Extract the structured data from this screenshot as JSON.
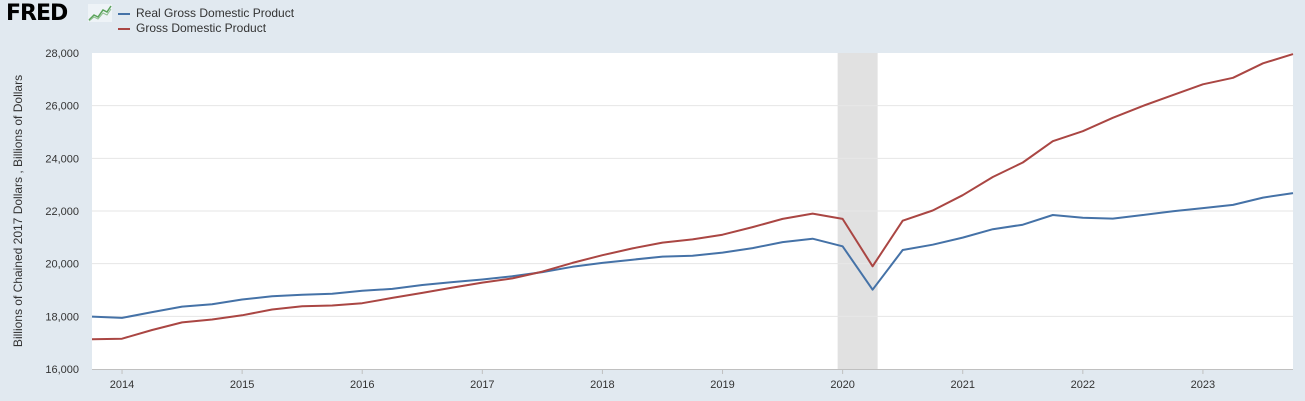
{
  "brand": {
    "logo_text": "FRED",
    "logo_icon": "fred-chart-icon"
  },
  "colors": {
    "background": "#e1e9f0",
    "plot": "#ffffff",
    "recession": "#e1e1e1"
  },
  "chart_data": {
    "type": "line",
    "title": "",
    "ylabel": "Billions of Chained 2017 Dollars , Billions of Dollars",
    "xlabel": "",
    "ylim": [
      16000,
      28000
    ],
    "yticks": [
      16000,
      18000,
      20000,
      22000,
      24000,
      26000,
      28000
    ],
    "ytick_labels": [
      "16,000",
      "18,000",
      "20,000",
      "22,000",
      "24,000",
      "26,000",
      "28,000"
    ],
    "xlim": [
      2013.75,
      2023.75
    ],
    "xticks": [
      2014,
      2015,
      2016,
      2017,
      2018,
      2019,
      2020,
      2021,
      2022,
      2023
    ],
    "xtick_labels": [
      "2014",
      "2015",
      "2016",
      "2017",
      "2018",
      "2019",
      "2020",
      "2021",
      "2022",
      "2023"
    ],
    "recession": [
      2020.0,
      2020.25
    ],
    "grid": true,
    "legend_position": "top-left",
    "x": [
      2013.75,
      2014.0,
      2014.25,
      2014.5,
      2014.75,
      2015.0,
      2015.25,
      2015.5,
      2015.75,
      2016.0,
      2016.25,
      2016.5,
      2016.75,
      2017.0,
      2017.25,
      2017.5,
      2017.75,
      2018.0,
      2018.25,
      2018.5,
      2018.75,
      2019.0,
      2019.25,
      2019.5,
      2019.75,
      2020.0,
      2020.25,
      2020.5,
      2020.75,
      2021.0,
      2021.25,
      2021.5,
      2021.75,
      2022.0,
      2022.25,
      2022.5,
      2022.75,
      2023.0,
      2023.25,
      2023.5,
      2023.75
    ],
    "series": [
      {
        "name": "Real Gross Domestic Product",
        "color": "#4572a7",
        "values": [
          17990,
          17940,
          18160,
          18370,
          18460,
          18640,
          18760,
          18820,
          18860,
          18970,
          19040,
          19190,
          19300,
          19400,
          19520,
          19680,
          19880,
          20030,
          20150,
          20270,
          20300,
          20420,
          20590,
          20820,
          20950,
          20660,
          19010,
          20520,
          20720,
          20990,
          21310,
          21480,
          21850,
          21740,
          21710,
          21850,
          21990,
          22110,
          22230,
          22510,
          22680
        ]
      },
      {
        "name": "Gross Domestic Product",
        "color": "#aa4643",
        "values": [
          17130,
          17150,
          17480,
          17770,
          17880,
          18040,
          18260,
          18380,
          18410,
          18500,
          18700,
          18890,
          19090,
          19280,
          19440,
          19700,
          20030,
          20320,
          20580,
          20800,
          20920,
          21100,
          21390,
          21700,
          21900,
          21700,
          19900,
          21630,
          22020,
          22600,
          23290,
          23840,
          24650,
          25030,
          25540,
          25990,
          26400,
          26810,
          27060,
          27610,
          27960
        ]
      }
    ]
  }
}
